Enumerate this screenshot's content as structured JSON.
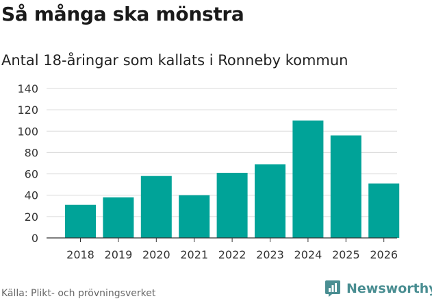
{
  "header": {
    "title": "Så många ska mönstra",
    "subtitle": "Antal 18-åringar som kallats i Ronneby kommun"
  },
  "footer": {
    "source": "Källa: Plikt- och prövningsverket",
    "brand": "Newsworthy"
  },
  "colors": {
    "bar": "#00a398",
    "grid": "#d9d9d9",
    "axis": "#333333",
    "brand": "#4a8e92"
  },
  "chart_data": {
    "type": "bar",
    "title": "Så många ska mönstra",
    "subtitle": "Antal 18-åringar som kallats i Ronneby kommun",
    "xlabel": "",
    "ylabel": "",
    "categories": [
      "2018",
      "2019",
      "2020",
      "2021",
      "2022",
      "2023",
      "2024",
      "2025",
      "2026"
    ],
    "values": [
      31,
      38,
      58,
      40,
      61,
      69,
      110,
      96,
      51
    ],
    "ylim": [
      0,
      140
    ],
    "yticks": [
      0,
      20,
      40,
      60,
      80,
      100,
      120,
      140
    ],
    "grid": true,
    "legend": "none"
  }
}
